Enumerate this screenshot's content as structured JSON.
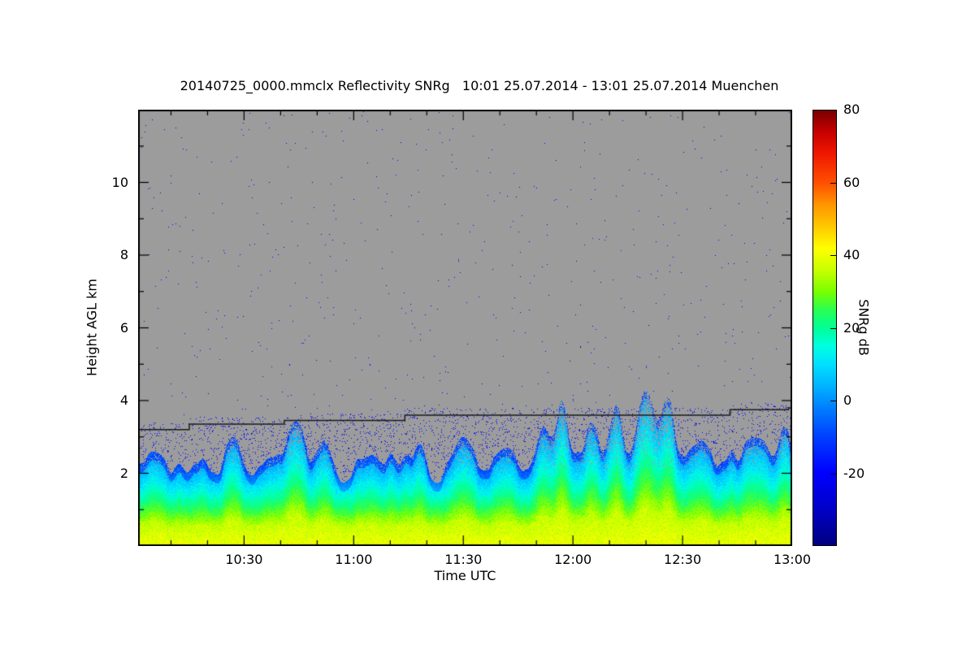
{
  "chart_data": {
    "type": "heatmap",
    "title": "20140725_0000.mmclx Reflectivity SNRg   10:01 25.07.2014 - 13:01 25.07.2014 Muenchen",
    "xlabel": "Time UTC",
    "ylabel": "Height AGL km",
    "colorbar_label": "SNRg dB",
    "x_start_min": 601,
    "x_end_min": 780,
    "x_ticks": [
      {
        "label": "10:30",
        "min": 630
      },
      {
        "label": "11:00",
        "min": 660
      },
      {
        "label": "11:30",
        "min": 690
      },
      {
        "label": "12:00",
        "min": 720
      },
      {
        "label": "12:30",
        "min": 750
      },
      {
        "label": "13:00",
        "min": 780
      }
    ],
    "x_minor_step_min": 10,
    "y_range_km": [
      0,
      12
    ],
    "y_ticks": [
      2,
      4,
      6,
      8,
      10
    ],
    "y_minor_ticks": [
      1,
      3,
      5,
      7,
      9,
      11
    ],
    "background_color": "#9c9c9c",
    "colorbar": {
      "range": [
        -40,
        80
      ],
      "ticks": [
        80,
        60,
        40,
        20,
        0,
        -20
      ],
      "stops": [
        [
          -40,
          "#000080"
        ],
        [
          -30,
          "#0000c8"
        ],
        [
          -20,
          "#0000ff"
        ],
        [
          -10,
          "#0040ff"
        ],
        [
          -2,
          "#0080ff"
        ],
        [
          4,
          "#00b4ff"
        ],
        [
          10,
          "#00e0ff"
        ],
        [
          15,
          "#00ffe1"
        ],
        [
          20,
          "#00ff96"
        ],
        [
          25,
          "#2aff50"
        ],
        [
          30,
          "#78ff00"
        ],
        [
          36,
          "#c8ff00"
        ],
        [
          42,
          "#ffff00"
        ],
        [
          48,
          "#ffc800"
        ],
        [
          54,
          "#ff9600"
        ],
        [
          60,
          "#ff5000"
        ],
        [
          68,
          "#f01800"
        ],
        [
          74,
          "#c80000"
        ],
        [
          80,
          "#780000"
        ]
      ]
    },
    "cloud_base_line": {
      "color": "#1a1a1a",
      "step_points": [
        [
          601,
          3.2
        ],
        [
          615,
          3.35
        ],
        [
          641,
          3.45
        ],
        [
          674,
          3.6
        ],
        [
          763,
          3.75
        ],
        [
          779,
          3.8
        ]
      ]
    },
    "boundary_layer": {
      "base_top_km": 2.15,
      "top_jitter_km": 0.4,
      "profile_breakpoints": [
        [
          0,
          40
        ],
        [
          0.55,
          36
        ],
        [
          0.95,
          26
        ],
        [
          1.5,
          14
        ],
        [
          2.0,
          4
        ],
        [
          2.6,
          -6
        ],
        [
          3.4,
          -14
        ],
        [
          6,
          -24
        ]
      ],
      "plumes": [
        [
          605,
          2.6,
          5
        ],
        [
          627,
          3.0,
          6
        ],
        [
          644,
          3.45,
          8
        ],
        [
          652,
          2.9,
          6
        ],
        [
          665,
          2.5,
          8
        ],
        [
          678,
          2.8,
          5
        ],
        [
          690,
          3.0,
          8
        ],
        [
          702,
          2.7,
          6
        ],
        [
          712,
          3.3,
          6
        ],
        [
          717,
          4.0,
          5
        ],
        [
          725,
          3.4,
          6
        ],
        [
          732,
          3.9,
          5
        ],
        [
          740,
          4.3,
          8
        ],
        [
          746,
          4.1,
          6
        ],
        [
          755,
          2.9,
          8
        ],
        [
          770,
          3.0,
          10
        ],
        [
          778,
          3.3,
          5
        ]
      ]
    },
    "speckle": {
      "haze_density": 0.05,
      "clear_air_density": 0.0018,
      "value_db": -22
    },
    "seed": 42
  }
}
